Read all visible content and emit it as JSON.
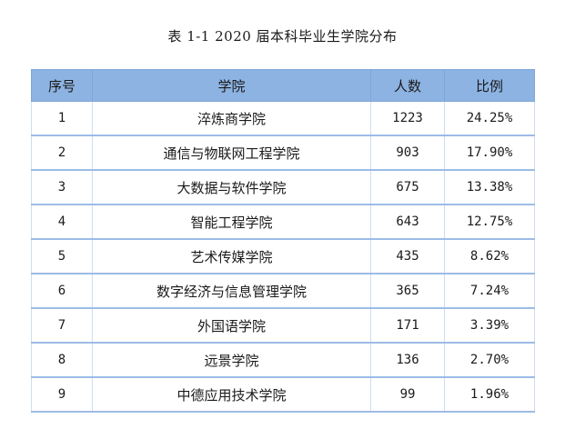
{
  "caption": "表 1-1   2020 届本科毕业生学院分布",
  "table": {
    "headers": [
      "序号",
      "学院",
      "人数",
      "比例"
    ],
    "rows": [
      {
        "no": "1",
        "college": "淬炼商学院",
        "count": "1223",
        "ratio": "24.25%"
      },
      {
        "no": "2",
        "college": "通信与物联网工程学院",
        "count": "903",
        "ratio": "17.90%"
      },
      {
        "no": "3",
        "college": "大数据与软件学院",
        "count": "675",
        "ratio": "13.38%"
      },
      {
        "no": "4",
        "college": "智能工程学院",
        "count": "643",
        "ratio": "12.75%"
      },
      {
        "no": "5",
        "college": "艺术传媒学院",
        "count": "435",
        "ratio": "8.62%"
      },
      {
        "no": "6",
        "college": "数字经济与信息管理学院",
        "count": "365",
        "ratio": "7.24%"
      },
      {
        "no": "7",
        "college": "外国语学院",
        "count": "171",
        "ratio": "3.39%"
      },
      {
        "no": "8",
        "college": "远景学院",
        "count": "136",
        "ratio": "2.70%"
      },
      {
        "no": "9",
        "college": "中德应用技术学院",
        "count": "99",
        "ratio": "1.96%"
      }
    ]
  }
}
